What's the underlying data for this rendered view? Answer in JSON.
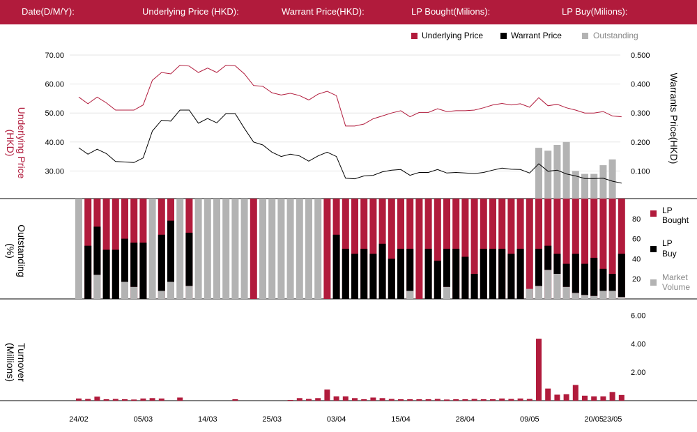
{
  "header": {
    "date_label": "Date(D/M/Y):",
    "underlying_label": "Underlying Price (HKD):",
    "warrant_label": "Warrant  Price(HKD):",
    "lp_bought_label": "LP Bought(Milions):",
    "lp_buy_label": "LP Buy(Milions):"
  },
  "colors": {
    "accent": "#b11b3c",
    "black": "#000000",
    "gray": "#b3b3b3"
  },
  "chart_data": [
    {
      "type": "line",
      "legend": {
        "underlying": "Underlying Price",
        "warrant": "Warrant  Price",
        "outstanding": "Outstanding"
      },
      "left_axis": {
        "label_line1": "Underlying Price",
        "label_line2": "(HKD)",
        "ticks": [
          "70.00",
          "60.00",
          "50.00",
          "40.00",
          "30.00"
        ],
        "ylim": [
          20,
          70
        ]
      },
      "right_axis": {
        "label": "Warrants  Price(HKD)",
        "ticks": [
          "0.500",
          "0.400",
          "0.300",
          "0.200",
          "0.100"
        ],
        "ylim": [
          0,
          0.5
        ]
      },
      "underlying": [
        55.5,
        53.2,
        55.5,
        53.5,
        51.0,
        51.0,
        51.0,
        52.8,
        61.3,
        64.0,
        63.5,
        66.5,
        66.2,
        64.0,
        65.5,
        64.0,
        66.5,
        66.3,
        63.5,
        59.5,
        59.2,
        57.0,
        56.2,
        56.8,
        56.0,
        54.5,
        56.5,
        57.5,
        56.0,
        45.5,
        45.5,
        46.2,
        48.0,
        49.0,
        50.0,
        50.8,
        48.7,
        50.2,
        50.2,
        51.5,
        50.5,
        50.8,
        50.8,
        51.0,
        51.8,
        52.8,
        53.3,
        52.8,
        53.2,
        52.0,
        55.3,
        52.5,
        53.0,
        51.8,
        51.0,
        50.0,
        50.0,
        50.5,
        49.0,
        48.7
      ],
      "warrant": [
        0.18,
        0.158,
        0.175,
        0.16,
        0.133,
        0.131,
        0.129,
        0.145,
        0.238,
        0.275,
        0.272,
        0.31,
        0.31,
        0.265,
        0.281,
        0.266,
        0.298,
        0.298,
        0.247,
        0.2,
        0.19,
        0.165,
        0.15,
        0.158,
        0.152,
        0.134,
        0.152,
        0.165,
        0.15,
        0.075,
        0.073,
        0.083,
        0.085,
        0.097,
        0.103,
        0.105,
        0.085,
        0.095,
        0.095,
        0.105,
        0.093,
        0.095,
        0.093,
        0.091,
        0.095,
        0.103,
        0.11,
        0.106,
        0.105,
        0.093,
        0.125,
        0.099,
        0.103,
        0.09,
        0.083,
        0.074,
        0.074,
        0.075,
        0.065,
        0.058
      ],
      "outstanding": [
        0,
        0,
        0,
        0,
        0,
        0,
        0,
        0,
        0,
        0,
        0,
        0,
        0,
        0,
        0,
        0,
        0,
        0,
        0,
        0,
        0,
        0,
        0,
        0,
        0,
        0,
        0,
        0,
        0,
        0,
        0,
        0,
        0,
        0,
        0,
        0,
        0,
        0,
        0,
        0,
        0,
        0,
        0,
        0,
        0,
        0,
        0,
        0,
        0,
        0,
        0.18,
        0.17,
        0.19,
        0.2,
        0.1,
        0.09,
        0.09,
        0.12,
        0.14,
        0
      ]
    },
    {
      "type": "bar",
      "legend": {
        "bought_line1": "LP",
        "bought_line2": "Bought",
        "buy_line1": "LP",
        "buy_line2": "Buy",
        "market_line1": "Market",
        "market_line2": "Volume"
      },
      "axis": {
        "label_line1": "Outstanding",
        "label_line2": "(%)",
        "ticks": [
          "80",
          "60",
          "40",
          "20"
        ],
        "ylim": [
          0,
          100
        ]
      },
      "red": [
        0,
        100,
        100,
        100,
        100,
        100,
        100,
        100,
        0,
        100,
        100,
        0,
        100,
        0,
        0,
        0,
        0,
        0,
        0,
        100,
        0,
        0,
        0,
        0,
        0,
        0,
        0,
        100,
        100,
        100,
        100,
        100,
        100,
        100,
        100,
        100,
        100,
        100,
        100,
        100,
        100,
        100,
        100,
        100,
        100,
        100,
        100,
        100,
        100,
        100,
        100,
        100,
        100,
        100,
        100,
        100,
        100,
        100,
        100,
        100
      ],
      "black": [
        0,
        53,
        72,
        49,
        49,
        60,
        56,
        56,
        0,
        64,
        78,
        0,
        66,
        0,
        0,
        0,
        0,
        0,
        0,
        0,
        0,
        0,
        0,
        0,
        0,
        0,
        0,
        0,
        64,
        50,
        45,
        50,
        45,
        55,
        40,
        50,
        50,
        0,
        50,
        38,
        50,
        50,
        42,
        25,
        50,
        50,
        50,
        45,
        50,
        0,
        50,
        53,
        45,
        35,
        45,
        35,
        41,
        30,
        25,
        45
      ],
      "gray": [
        100,
        0,
        24,
        0,
        0,
        17,
        12,
        0,
        100,
        8,
        17,
        100,
        13,
        100,
        100,
        100,
        100,
        100,
        100,
        0,
        100,
        100,
        100,
        100,
        100,
        100,
        100,
        0,
        0,
        0,
        0,
        0,
        0,
        0,
        0,
        0,
        8,
        0,
        0,
        0,
        12,
        0,
        0,
        0,
        0,
        0,
        0,
        0,
        0,
        10,
        13,
        29,
        25,
        12,
        6,
        4,
        3,
        8,
        8,
        2
      ]
    },
    {
      "type": "bar",
      "axis": {
        "label_line1": "Turnover",
        "label_line2": "(Millions)",
        "ticks": [
          "6.00",
          "4.00",
          "2.00"
        ],
        "ylim": [
          0,
          7
        ]
      },
      "values": [
        0.15,
        0.12,
        0.28,
        0.1,
        0.12,
        0.1,
        0.08,
        0.15,
        0.18,
        0.15,
        0,
        0.22,
        0,
        0,
        0,
        0,
        0,
        0.1,
        0,
        0,
        0,
        0,
        0,
        0.05,
        0.18,
        0.12,
        0.18,
        0.78,
        0.3,
        0.3,
        0.18,
        0.1,
        0.22,
        0.18,
        0.12,
        0.1,
        0.1,
        0.1,
        0.1,
        0.12,
        0.08,
        0.1,
        0.1,
        0.12,
        0.1,
        0.1,
        0.15,
        0.12,
        0.15,
        0.12,
        4.35,
        0.85,
        0.42,
        0.45,
        1.1,
        0.35,
        0.3,
        0.3,
        0.6,
        0.4
      ]
    }
  ],
  "x_labels": [
    {
      "i": 0,
      "text": "24/02"
    },
    {
      "i": 7,
      "text": "05/03"
    },
    {
      "i": 14,
      "text": "14/03"
    },
    {
      "i": 21,
      "text": "25/03"
    },
    {
      "i": 28,
      "text": "03/04"
    },
    {
      "i": 35,
      "text": "15/04"
    },
    {
      "i": 42,
      "text": "28/04"
    },
    {
      "i": 49,
      "text": "09/05"
    },
    {
      "i": 56,
      "text": "20/05"
    },
    {
      "i": 58,
      "text": "23/05"
    }
  ]
}
